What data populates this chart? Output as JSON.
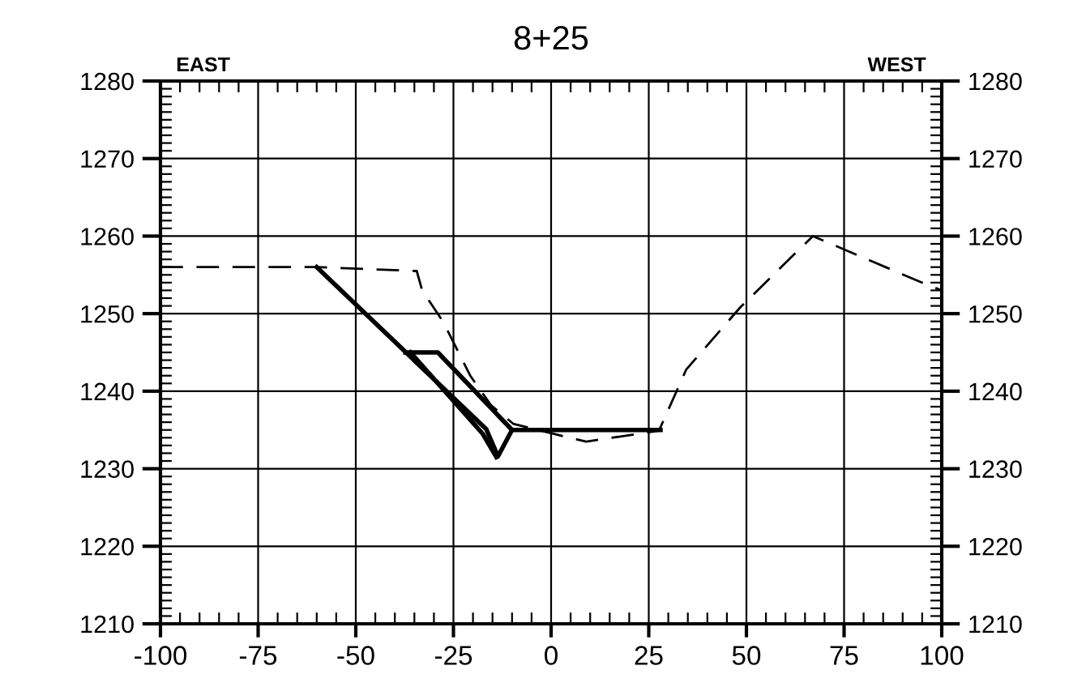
{
  "chart_data": {
    "type": "line",
    "title": "8+25",
    "annotations": [
      "EAST",
      "WEST"
    ],
    "xlim": [
      -100,
      100
    ],
    "xticks": [
      -100,
      -75,
      -50,
      -25,
      0,
      25,
      50,
      75,
      100
    ],
    "ylim": [
      1210,
      1280
    ],
    "yticks": [
      1210,
      1220,
      1230,
      1240,
      1250,
      1260,
      1270,
      1280
    ],
    "y2lim": [
      1210,
      1280
    ],
    "y2ticks": [
      1210,
      1220,
      1230,
      1240,
      1250,
      1260,
      1270,
      1280
    ],
    "grid": true,
    "legend": false,
    "marker": "none",
    "series": [
      {
        "color": "#000000",
        "line_style": "dashed",
        "x": [
          -100,
          -60,
          -34.4,
          -33,
          -27.7,
          -20.7,
          -15.4,
          -9.7,
          1.4,
          9,
          27.6,
          34.6,
          48.4,
          67,
          95.4,
          100
        ],
        "values": [
          1256,
          1256,
          1255.5,
          1253,
          1249,
          1242,
          1238.2,
          1235.8,
          1234.4,
          1233.5,
          1234.9,
          1242.8,
          1250.8,
          1260,
          1253.9,
          1253
        ]
      },
      {
        "color": "#000000",
        "line_style": "solid",
        "x": [
          -60,
          -16.6,
          -13.6,
          -10,
          28
        ],
        "values": [
          1256,
          1235.1,
          1231.6,
          1235,
          1235
        ]
      },
      {
        "color": "#000000",
        "line_style": "solid",
        "x": [
          -37.3,
          -29,
          -10
        ],
        "values": [
          1245,
          1245,
          1235
        ]
      },
      {
        "color": "#000000",
        "line_style": "solid",
        "x": [
          -36,
          -17.5,
          -14
        ],
        "values": [
          1245,
          1234.5,
          1231.5
        ]
      }
    ]
  }
}
